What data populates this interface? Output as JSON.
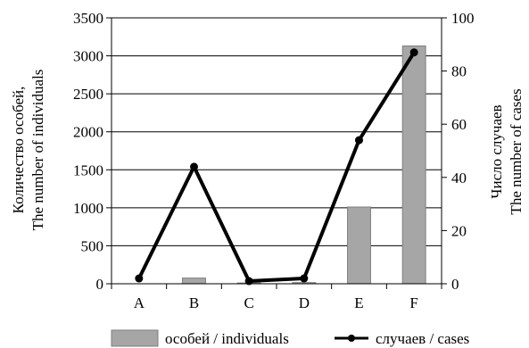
{
  "chart_data": {
    "type": "bar+line",
    "categories": [
      "A",
      "B",
      "C",
      "D",
      "E",
      "F"
    ],
    "series": [
      {
        "name": "особей / individuals",
        "type": "bar",
        "axis": "left",
        "values": [
          0,
          75,
          10,
          15,
          1010,
          3130
        ],
        "color": "#a6a6a6"
      },
      {
        "name": "случаев / cases",
        "type": "line",
        "axis": "right",
        "values": [
          2,
          44,
          1,
          2,
          54,
          87
        ],
        "color": "#000000"
      }
    ],
    "y_left": {
      "title_line1": "Количество особей,",
      "title_line2": "The number of individuals",
      "range": [
        0,
        3500
      ],
      "ticks": [
        "0",
        "500",
        "1000",
        "1500",
        "2000",
        "2500",
        "3000",
        "3500"
      ]
    },
    "y_right": {
      "title_line1": "Число случаев",
      "title_line2": "The number of cases",
      "range": [
        0,
        100
      ],
      "ticks": [
        "0",
        "20",
        "40",
        "60",
        "80",
        "100"
      ]
    },
    "grid": "horizontal",
    "legend_position": "bottom"
  }
}
